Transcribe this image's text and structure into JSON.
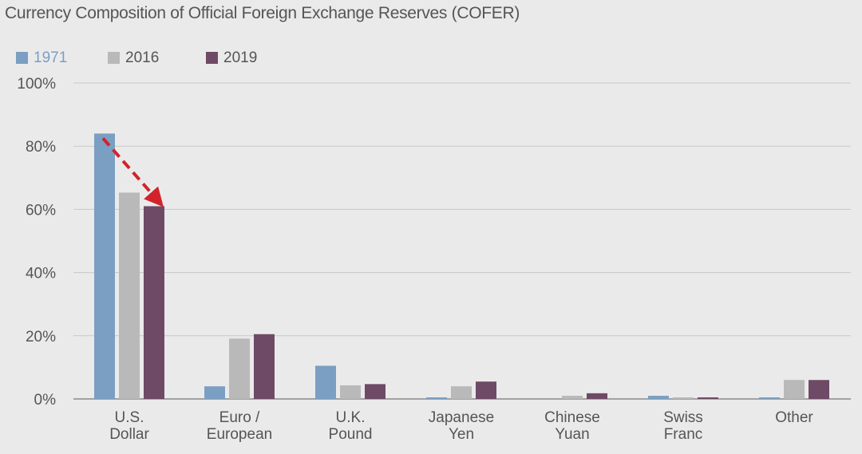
{
  "chart_data": {
    "type": "bar",
    "title": "Currency Composition of Official Foreign Exchange Reserves (COFER)",
    "categories": [
      [
        "U.S.",
        "Dollar"
      ],
      [
        "Euro /",
        "European"
      ],
      [
        "U.K.",
        "Pound"
      ],
      [
        "Japanese",
        "Yen"
      ],
      [
        "Chinese",
        "Yuan"
      ],
      [
        "Swiss",
        "Franc"
      ],
      [
        "Other"
      ]
    ],
    "series": [
      {
        "name": "1971",
        "color": "#7b9fc2",
        "values": [
          84,
          4,
          10.5,
          0.5,
          0,
          1,
          0.5
        ]
      },
      {
        "name": "2016",
        "color": "#b9b9b9",
        "values": [
          65.3,
          19.1,
          4.3,
          4,
          1,
          0.5,
          6
        ]
      },
      {
        "name": "2019",
        "color": "#6e4a67",
        "values": [
          61,
          20.5,
          4.7,
          5.5,
          1.8,
          0.5,
          6
        ]
      }
    ],
    "ylim": [
      0,
      100
    ],
    "yticks": [
      "0%",
      "20%",
      "40%",
      "60%",
      "80%",
      "100%"
    ],
    "ytick_values": [
      0,
      20,
      40,
      60,
      80,
      100
    ],
    "xlabel": "",
    "ylabel": "",
    "grid": true,
    "legend_position": "top-left",
    "annotation": {
      "type": "arrow",
      "color": "#d2232a",
      "from_series": "1971",
      "to_series": "2019",
      "category_index": 0
    }
  }
}
